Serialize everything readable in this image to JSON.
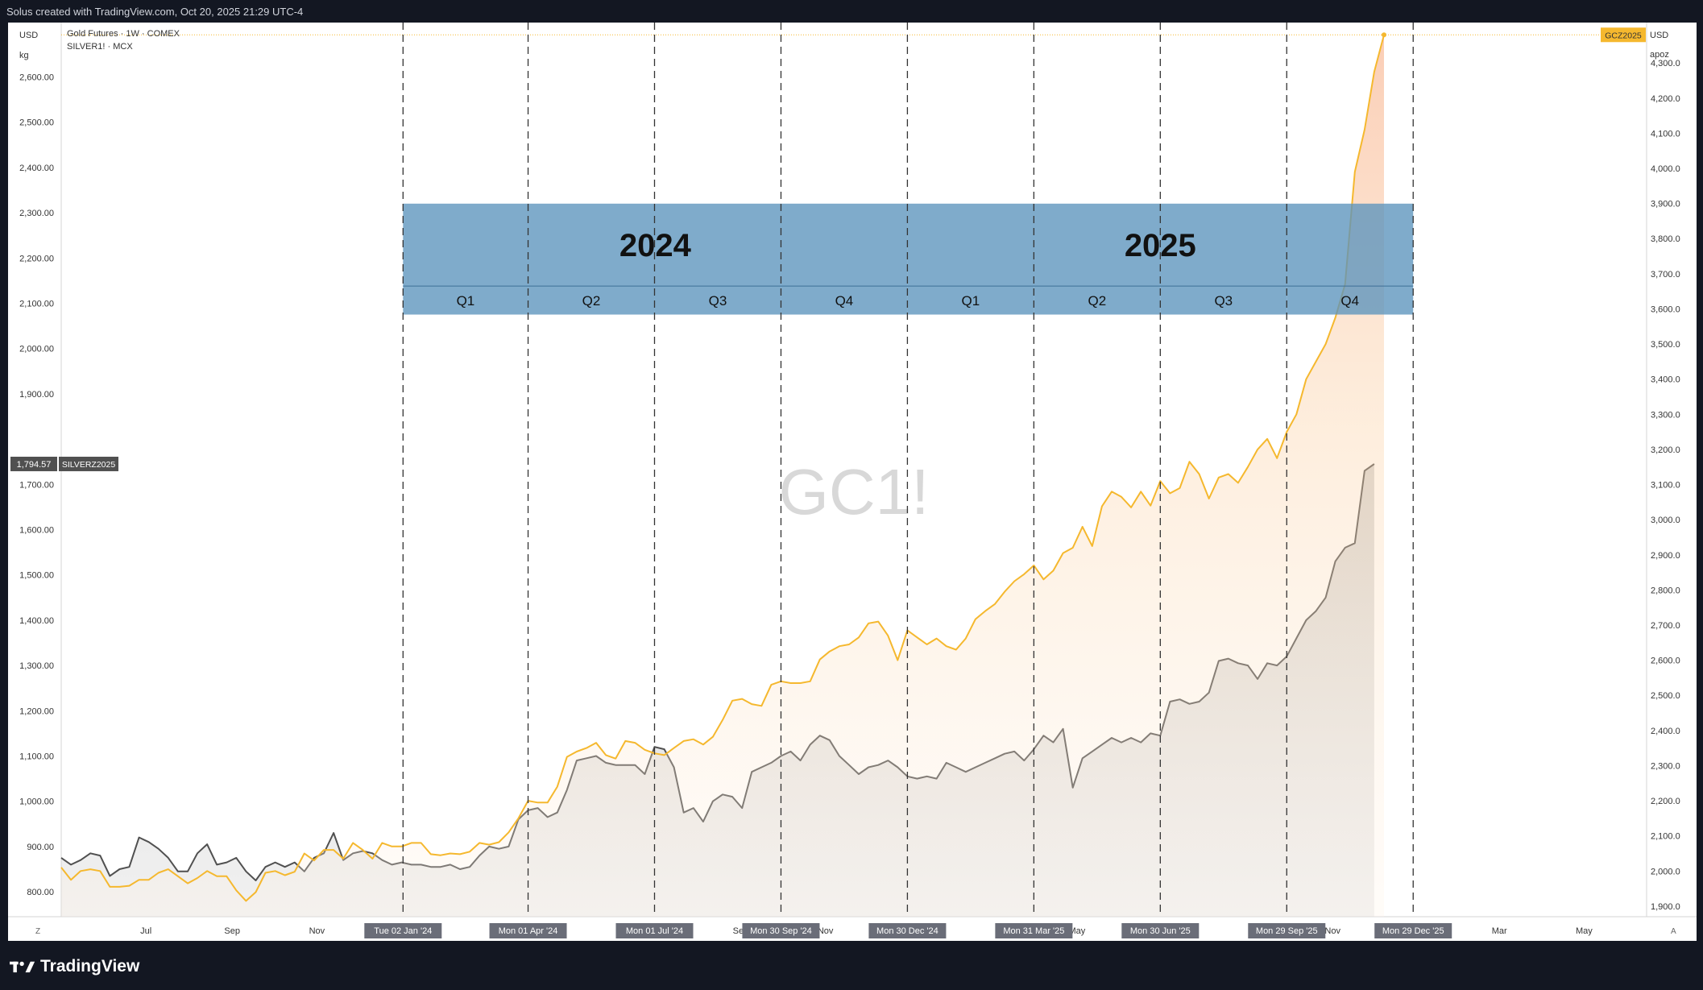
{
  "header": {
    "caption": "Solus created with TradingView.com, Oct 20, 2025 21:29 UTC-4"
  },
  "legend": {
    "line1": "Gold Futures · 1W · COMEX",
    "line2": "SILVER1! · MCX"
  },
  "watermark": "GC1!",
  "left_axis": {
    "unit_top": "USD",
    "unit_bottom": "kg",
    "badge_value": "1,794.57",
    "badge_name": "SILVERZ2025"
  },
  "right_axis": {
    "unit_top": "USD",
    "unit_bottom": "apoz",
    "badge_name": "GCZ2025"
  },
  "corner_buttons": {
    "left": "Z",
    "right": "A"
  },
  "brand": "TradingView",
  "colors": {
    "gold": "#f5b82e",
    "silver": "#505050",
    "band": "#5b93bd",
    "band_text": "#111111"
  },
  "chart_data": {
    "type": "line",
    "x_axis_type": "date",
    "x_range": [
      "2023-05-01",
      "2026-06-15"
    ],
    "left_y_range": [
      745,
      2720
    ],
    "right_y_range": [
      1870,
      4415
    ],
    "left_ticks": [
      800,
      900,
      1000,
      1100,
      1200,
      1300,
      1400,
      1500,
      1600,
      1700,
      1800,
      1900,
      2000,
      2100,
      2200,
      2300,
      2400,
      2500,
      2600
    ],
    "left_tick_labels": [
      "800.00",
      "900.00",
      "1,000.00",
      "1,100.00",
      "1,200.00",
      "1,300.00",
      "1,400.00",
      "1,500.00",
      "1,600.00",
      "1,700.00",
      "",
      "1,900.00",
      "2,000.00",
      "2,100.00",
      "2,200.00",
      "2,300.00",
      "2,400.00",
      "2,500.00",
      "2,600.00"
    ],
    "right_ticks": [
      1900,
      2000,
      2100,
      2200,
      2300,
      2400,
      2500,
      2600,
      2700,
      2800,
      2900,
      3000,
      3100,
      3200,
      3300,
      3400,
      3500,
      3600,
      3700,
      3800,
      3900,
      4000,
      4100,
      4200,
      4300
    ],
    "right_tick_labels": [
      "1,900.0",
      "2,000.0",
      "2,100.0",
      "2,200.0",
      "2,300.0",
      "2,400.0",
      "2,500.0",
      "2,600.0",
      "2,700.0",
      "2,800.0",
      "2,900.0",
      "3,000.0",
      "3,100.0",
      "3,200.0",
      "3,300.0",
      "3,400.0",
      "3,500.0",
      "3,600.0",
      "3,700.0",
      "3,800.0",
      "3,900.0",
      "4,000.0",
      "4,100.0",
      "4,200.0",
      "4,300.0"
    ],
    "month_ticks": [
      {
        "date": "2023-07-01",
        "label": "Jul"
      },
      {
        "date": "2023-09-01",
        "label": "Sep"
      },
      {
        "date": "2023-11-01",
        "label": "Nov"
      },
      {
        "date": "2024-09-01",
        "label": "Sep"
      },
      {
        "date": "2024-11-01",
        "label": "Nov"
      },
      {
        "date": "2025-05-01",
        "label": "May"
      },
      {
        "date": "2025-11-01",
        "label": "Nov"
      },
      {
        "date": "2026-03-01",
        "label": "Mar"
      },
      {
        "date": "2026-05-01",
        "label": "May"
      }
    ],
    "date_badges": [
      {
        "date": "2024-01-02",
        "label": "Tue 02 Jan '24"
      },
      {
        "date": "2024-04-01",
        "label": "Mon 01 Apr '24"
      },
      {
        "date": "2024-07-01",
        "label": "Mon 01 Jul '24"
      },
      {
        "date": "2024-09-30",
        "label": "Mon 30 Sep '24"
      },
      {
        "date": "2024-12-30",
        "label": "Mon 30 Dec '24"
      },
      {
        "date": "2025-03-31",
        "label": "Mon 31 Mar '25"
      },
      {
        "date": "2025-06-30",
        "label": "Mon 30 Jun '25"
      },
      {
        "date": "2025-09-29",
        "label": "Mon 29 Sep '25"
      },
      {
        "date": "2025-12-29",
        "label": "Mon 29 Dec '25"
      }
    ],
    "quarter_lines": [
      "2024-01-02",
      "2024-04-01",
      "2024-07-01",
      "2024-09-30",
      "2024-12-30",
      "2025-03-31",
      "2025-06-30",
      "2025-09-29",
      "2025-12-29"
    ],
    "year_band": {
      "top_value_left": 2320,
      "mid_value_left": 2138,
      "bottom_value_left": 2075,
      "years": [
        {
          "label": "2024",
          "start": "2024-01-02",
          "end": "2024-12-30"
        },
        {
          "label": "2025",
          "start": "2024-12-30",
          "end": "2025-12-29"
        }
      ],
      "quarters": [
        {
          "label": "Q1",
          "start": "2024-01-02",
          "end": "2024-04-01"
        },
        {
          "label": "Q2",
          "start": "2024-04-01",
          "end": "2024-07-01"
        },
        {
          "label": "Q3",
          "start": "2024-07-01",
          "end": "2024-09-30"
        },
        {
          "label": "Q4",
          "start": "2024-09-30",
          "end": "2024-12-30"
        },
        {
          "label": "Q1",
          "start": "2024-12-30",
          "end": "2025-03-31"
        },
        {
          "label": "Q2",
          "start": "2025-03-31",
          "end": "2025-06-30"
        },
        {
          "label": "Q3",
          "start": "2025-06-30",
          "end": "2025-09-29"
        },
        {
          "label": "Q4",
          "start": "2025-09-29",
          "end": "2025-12-29"
        }
      ]
    },
    "series": [
      {
        "name": "GCZ2025",
        "axis": "right",
        "start": "2023-05-01",
        "step_days": 7,
        "values": [
          2010,
          1975,
          2000,
          2005,
          2000,
          1955,
          1955,
          1958,
          1975,
          1975,
          1995,
          2005,
          1985,
          1965,
          1980,
          2000,
          1985,
          1985,
          1945,
          1915,
          1940,
          1995,
          2000,
          1988,
          1998,
          2050,
          2030,
          2060,
          2060,
          2035,
          2080,
          2060,
          2035,
          2080,
          2070,
          2070,
          2080,
          2080,
          2048,
          2045,
          2050,
          2048,
          2055,
          2080,
          2075,
          2082,
          2110,
          2150,
          2200,
          2195,
          2195,
          2240,
          2325,
          2340,
          2350,
          2365,
          2330,
          2320,
          2370,
          2365,
          2345,
          2335,
          2330,
          2350,
          2370,
          2375,
          2360,
          2382,
          2430,
          2485,
          2490,
          2475,
          2470,
          2530,
          2540,
          2535,
          2535,
          2540,
          2602,
          2625,
          2640,
          2645,
          2665,
          2705,
          2710,
          2670,
          2600,
          2685,
          2665,
          2645,
          2662,
          2640,
          2630,
          2662,
          2717,
          2740,
          2760,
          2795,
          2825,
          2845,
          2870,
          2830,
          2855,
          2905,
          2920,
          2980,
          2925,
          3038,
          3080,
          3065,
          3035,
          3080,
          3040,
          3110,
          3075,
          3090,
          3165,
          3130,
          3060,
          3120,
          3130,
          3105,
          3150,
          3200,
          3230,
          3175,
          3250,
          3300,
          3400,
          3450,
          3500,
          3575,
          3670,
          3990,
          4110,
          4275,
          4380
        ]
      },
      {
        "name": "SILVERZ2025",
        "axis": "left",
        "start": "2023-05-01",
        "step_days": 7,
        "values": [
          875,
          860,
          870,
          885,
          880,
          835,
          850,
          855,
          920,
          910,
          895,
          875,
          845,
          845,
          885,
          905,
          860,
          865,
          875,
          845,
          825,
          855,
          865,
          855,
          865,
          845,
          875,
          885,
          930,
          870,
          885,
          890,
          885,
          870,
          860,
          865,
          860,
          860,
          855,
          855,
          860,
          850,
          855,
          880,
          900,
          895,
          900,
          960,
          980,
          985,
          965,
          975,
          1025,
          1090,
          1095,
          1100,
          1085,
          1080,
          1080,
          1080,
          1060,
          1120,
          1115,
          1075,
          975,
          985,
          955,
          1000,
          1015,
          1010,
          985,
          1065,
          1075,
          1085,
          1100,
          1110,
          1090,
          1125,
          1145,
          1135,
          1100,
          1080,
          1060,
          1075,
          1080,
          1090,
          1075,
          1055,
          1050,
          1055,
          1050,
          1085,
          1075,
          1065,
          1075,
          1085,
          1095,
          1105,
          1110,
          1090,
          1115,
          1145,
          1130,
          1160,
          1030,
          1095,
          1110,
          1125,
          1140,
          1130,
          1140,
          1130,
          1150,
          1145,
          1220,
          1225,
          1215,
          1220,
          1240,
          1310,
          1315,
          1305,
          1300,
          1270,
          1305,
          1300,
          1320,
          1360,
          1400,
          1420,
          1450,
          1530,
          1560,
          1570,
          1730,
          1745
        ]
      }
    ]
  }
}
